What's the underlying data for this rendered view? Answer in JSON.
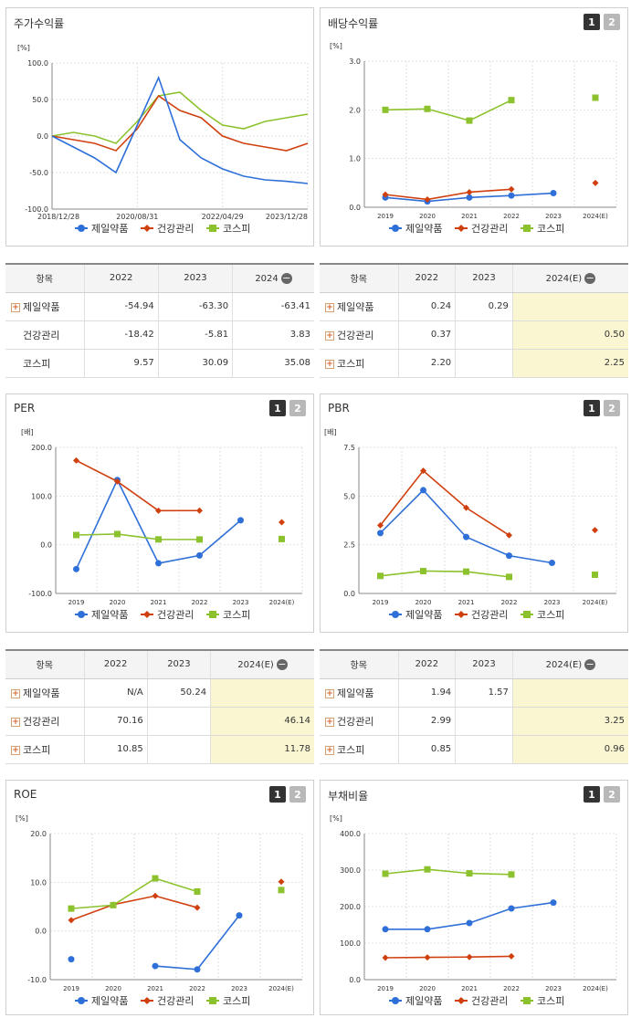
{
  "legend": [
    "제일약품",
    "건강관리",
    "코스피"
  ],
  "colors": {
    "s0": "#2f6fd8",
    "s1": "#d0400f",
    "s2": "#8cc22d"
  },
  "tabs": [
    "1",
    "2"
  ],
  "price": {
    "title": "주가수익률",
    "unit": "[%]",
    "yticks": [
      "100.0",
      "50.0",
      "0.0",
      "-50.0",
      "-100.0"
    ],
    "xticks": [
      "2018/12/28",
      "2020/08/31",
      "2022/04/29",
      "2023/12/28"
    ]
  },
  "dividend": {
    "title": "배당수익률",
    "unit": "[%]",
    "yticks": [
      "3.0",
      "2.0",
      "1.0",
      "0.0"
    ],
    "xticks": [
      "2019",
      "2020",
      "2021",
      "2022",
      "2023",
      "2024(E)"
    ]
  },
  "per": {
    "title": "PER",
    "unit": "[배]",
    "yticks": [
      "200.0",
      "100.0",
      "0.0",
      "-100.0"
    ],
    "xticks": [
      "2019",
      "2020",
      "2021",
      "2022",
      "2023",
      "2024(E)"
    ]
  },
  "pbr": {
    "title": "PBR",
    "unit": "[배]",
    "yticks": [
      "7.5",
      "5.0",
      "2.5",
      "0.0"
    ],
    "xticks": [
      "2019",
      "2020",
      "2021",
      "2022",
      "2023",
      "2024(E)"
    ]
  },
  "roe": {
    "title": "ROE",
    "unit": "[%]",
    "yticks": [
      "20.0",
      "10.0",
      "0.0",
      "-10.0"
    ],
    "xticks": [
      "2019",
      "2020",
      "2021",
      "2022",
      "2023",
      "2024(E)"
    ]
  },
  "debt": {
    "title": "부채비율",
    "unit": "[%]",
    "yticks": [
      "400.0",
      "300.0",
      "200.0",
      "100.0",
      "0.0"
    ],
    "xticks": [
      "2019",
      "2020",
      "2021",
      "2022",
      "2023",
      "2024(E)"
    ]
  },
  "tables": {
    "price": {
      "header": [
        "항목",
        "2022",
        "2023",
        "2024"
      ],
      "rows": [
        [
          "제일약품",
          "-54.94",
          "-63.30",
          "-63.41"
        ],
        [
          "건강관리",
          "-18.42",
          "-5.81",
          "3.83"
        ],
        [
          "코스피",
          "9.57",
          "30.09",
          "35.08"
        ]
      ]
    },
    "dividend": {
      "header": [
        "항목",
        "2022",
        "2023",
        "2024(E)"
      ],
      "rows": [
        [
          "제일약품",
          "0.24",
          "0.29",
          ""
        ],
        [
          "건강관리",
          "0.37",
          "",
          "0.50"
        ],
        [
          "코스피",
          "2.20",
          "",
          "2.25"
        ]
      ]
    },
    "per": {
      "header": [
        "항목",
        "2022",
        "2023",
        "2024(E)"
      ],
      "rows": [
        [
          "제일약품",
          "N/A",
          "50.24",
          ""
        ],
        [
          "건강관리",
          "70.16",
          "",
          "46.14"
        ],
        [
          "코스피",
          "10.85",
          "",
          "11.78"
        ]
      ]
    },
    "pbr": {
      "header": [
        "항목",
        "2022",
        "2023",
        "2024(E)"
      ],
      "rows": [
        [
          "제일약품",
          "1.94",
          "1.57",
          ""
        ],
        [
          "건강관리",
          "2.99",
          "",
          "3.25"
        ],
        [
          "코스피",
          "0.85",
          "",
          "0.96"
        ]
      ]
    }
  },
  "chart_data": [
    {
      "type": "line",
      "title": "주가수익률",
      "ylabel": "[%]",
      "ylim": [
        -100,
        100
      ],
      "x": [
        "2018/12/28",
        "2019/06",
        "2019/12",
        "2020/03",
        "2020/08/31",
        "2021/01",
        "2021/06",
        "2021/12",
        "2022/04/29",
        "2022/10",
        "2023/03",
        "2023/08",
        "2023/12/28"
      ],
      "series": [
        {
          "name": "제일약품",
          "values": [
            0,
            -15,
            -30,
            -50,
            15,
            80,
            -5,
            -30,
            -45,
            -55,
            -60,
            -62,
            -65
          ]
        },
        {
          "name": "건강관리",
          "values": [
            0,
            -5,
            -10,
            -20,
            10,
            55,
            35,
            25,
            0,
            -10,
            -15,
            -20,
            -10
          ]
        },
        {
          "name": "코스피",
          "values": [
            0,
            5,
            0,
            -10,
            20,
            55,
            60,
            35,
            15,
            10,
            20,
            25,
            30
          ]
        }
      ]
    },
    {
      "type": "line",
      "title": "배당수익률",
      "ylabel": "[%]",
      "ylim": [
        0,
        3
      ],
      "x": [
        "2019",
        "2020",
        "2021",
        "2022",
        "2023",
        "2024(E)"
      ],
      "series": [
        {
          "name": "제일약품",
          "values": [
            0.2,
            0.12,
            0.2,
            0.24,
            0.29,
            null
          ]
        },
        {
          "name": "건강관리",
          "values": [
            0.26,
            0.16,
            0.31,
            0.37,
            null,
            0.5
          ]
        },
        {
          "name": "코스피",
          "values": [
            2.0,
            2.02,
            1.78,
            2.2,
            null,
            2.25
          ]
        }
      ]
    },
    {
      "type": "line",
      "title": "PER",
      "ylabel": "[배]",
      "ylim": [
        -100,
        200
      ],
      "x": [
        "2019",
        "2020",
        "2021",
        "2022",
        "2023",
        "2024(E)"
      ],
      "series": [
        {
          "name": "제일약품",
          "values": [
            -50,
            133,
            -38,
            -22,
            50.24,
            null
          ]
        },
        {
          "name": "건강관리",
          "values": [
            173,
            130,
            70,
            70.16,
            null,
            46.14
          ]
        },
        {
          "name": "코스피",
          "values": [
            20,
            22,
            11,
            10.85,
            null,
            11.78
          ]
        }
      ]
    },
    {
      "type": "line",
      "title": "PBR",
      "ylabel": "[배]",
      "ylim": [
        0,
        7.5
      ],
      "x": [
        "2019",
        "2020",
        "2021",
        "2022",
        "2023",
        "2024(E)"
      ],
      "series": [
        {
          "name": "제일약품",
          "values": [
            3.1,
            5.3,
            2.9,
            1.94,
            1.57,
            null
          ]
        },
        {
          "name": "건강관리",
          "values": [
            3.5,
            6.3,
            4.4,
            2.99,
            null,
            3.25
          ]
        },
        {
          "name": "코스피",
          "values": [
            0.9,
            1.15,
            1.12,
            0.85,
            null,
            0.96
          ]
        }
      ]
    },
    {
      "type": "line",
      "title": "ROE",
      "ylabel": "[%]",
      "ylim": [
        -10,
        20
      ],
      "x": [
        "2019",
        "2020",
        "2021",
        "2022",
        "2023",
        "2024(E)"
      ],
      "series": [
        {
          "name": "제일약품",
          "values": [
            -5.8,
            null,
            -7.2,
            -7.9,
            3.2,
            null
          ]
        },
        {
          "name": "건강관리",
          "values": [
            2.2,
            5.4,
            7.2,
            4.8,
            null,
            10.1
          ]
        },
        {
          "name": "코스피",
          "values": [
            4.6,
            5.3,
            10.8,
            8.1,
            null,
            8.4
          ]
        }
      ]
    },
    {
      "type": "line",
      "title": "부채비율",
      "ylabel": "[%]",
      "ylim": [
        0,
        400
      ],
      "x": [
        "2019",
        "2020",
        "2021",
        "2022",
        "2023",
        "2024(E)"
      ],
      "series": [
        {
          "name": "제일약품",
          "values": [
            138,
            138,
            155,
            195,
            211,
            null
          ]
        },
        {
          "name": "건강관리",
          "values": [
            60,
            61,
            62,
            64,
            null,
            null
          ]
        },
        {
          "name": "코스피",
          "values": [
            290,
            302,
            291,
            288,
            null,
            null
          ]
        }
      ]
    }
  ]
}
